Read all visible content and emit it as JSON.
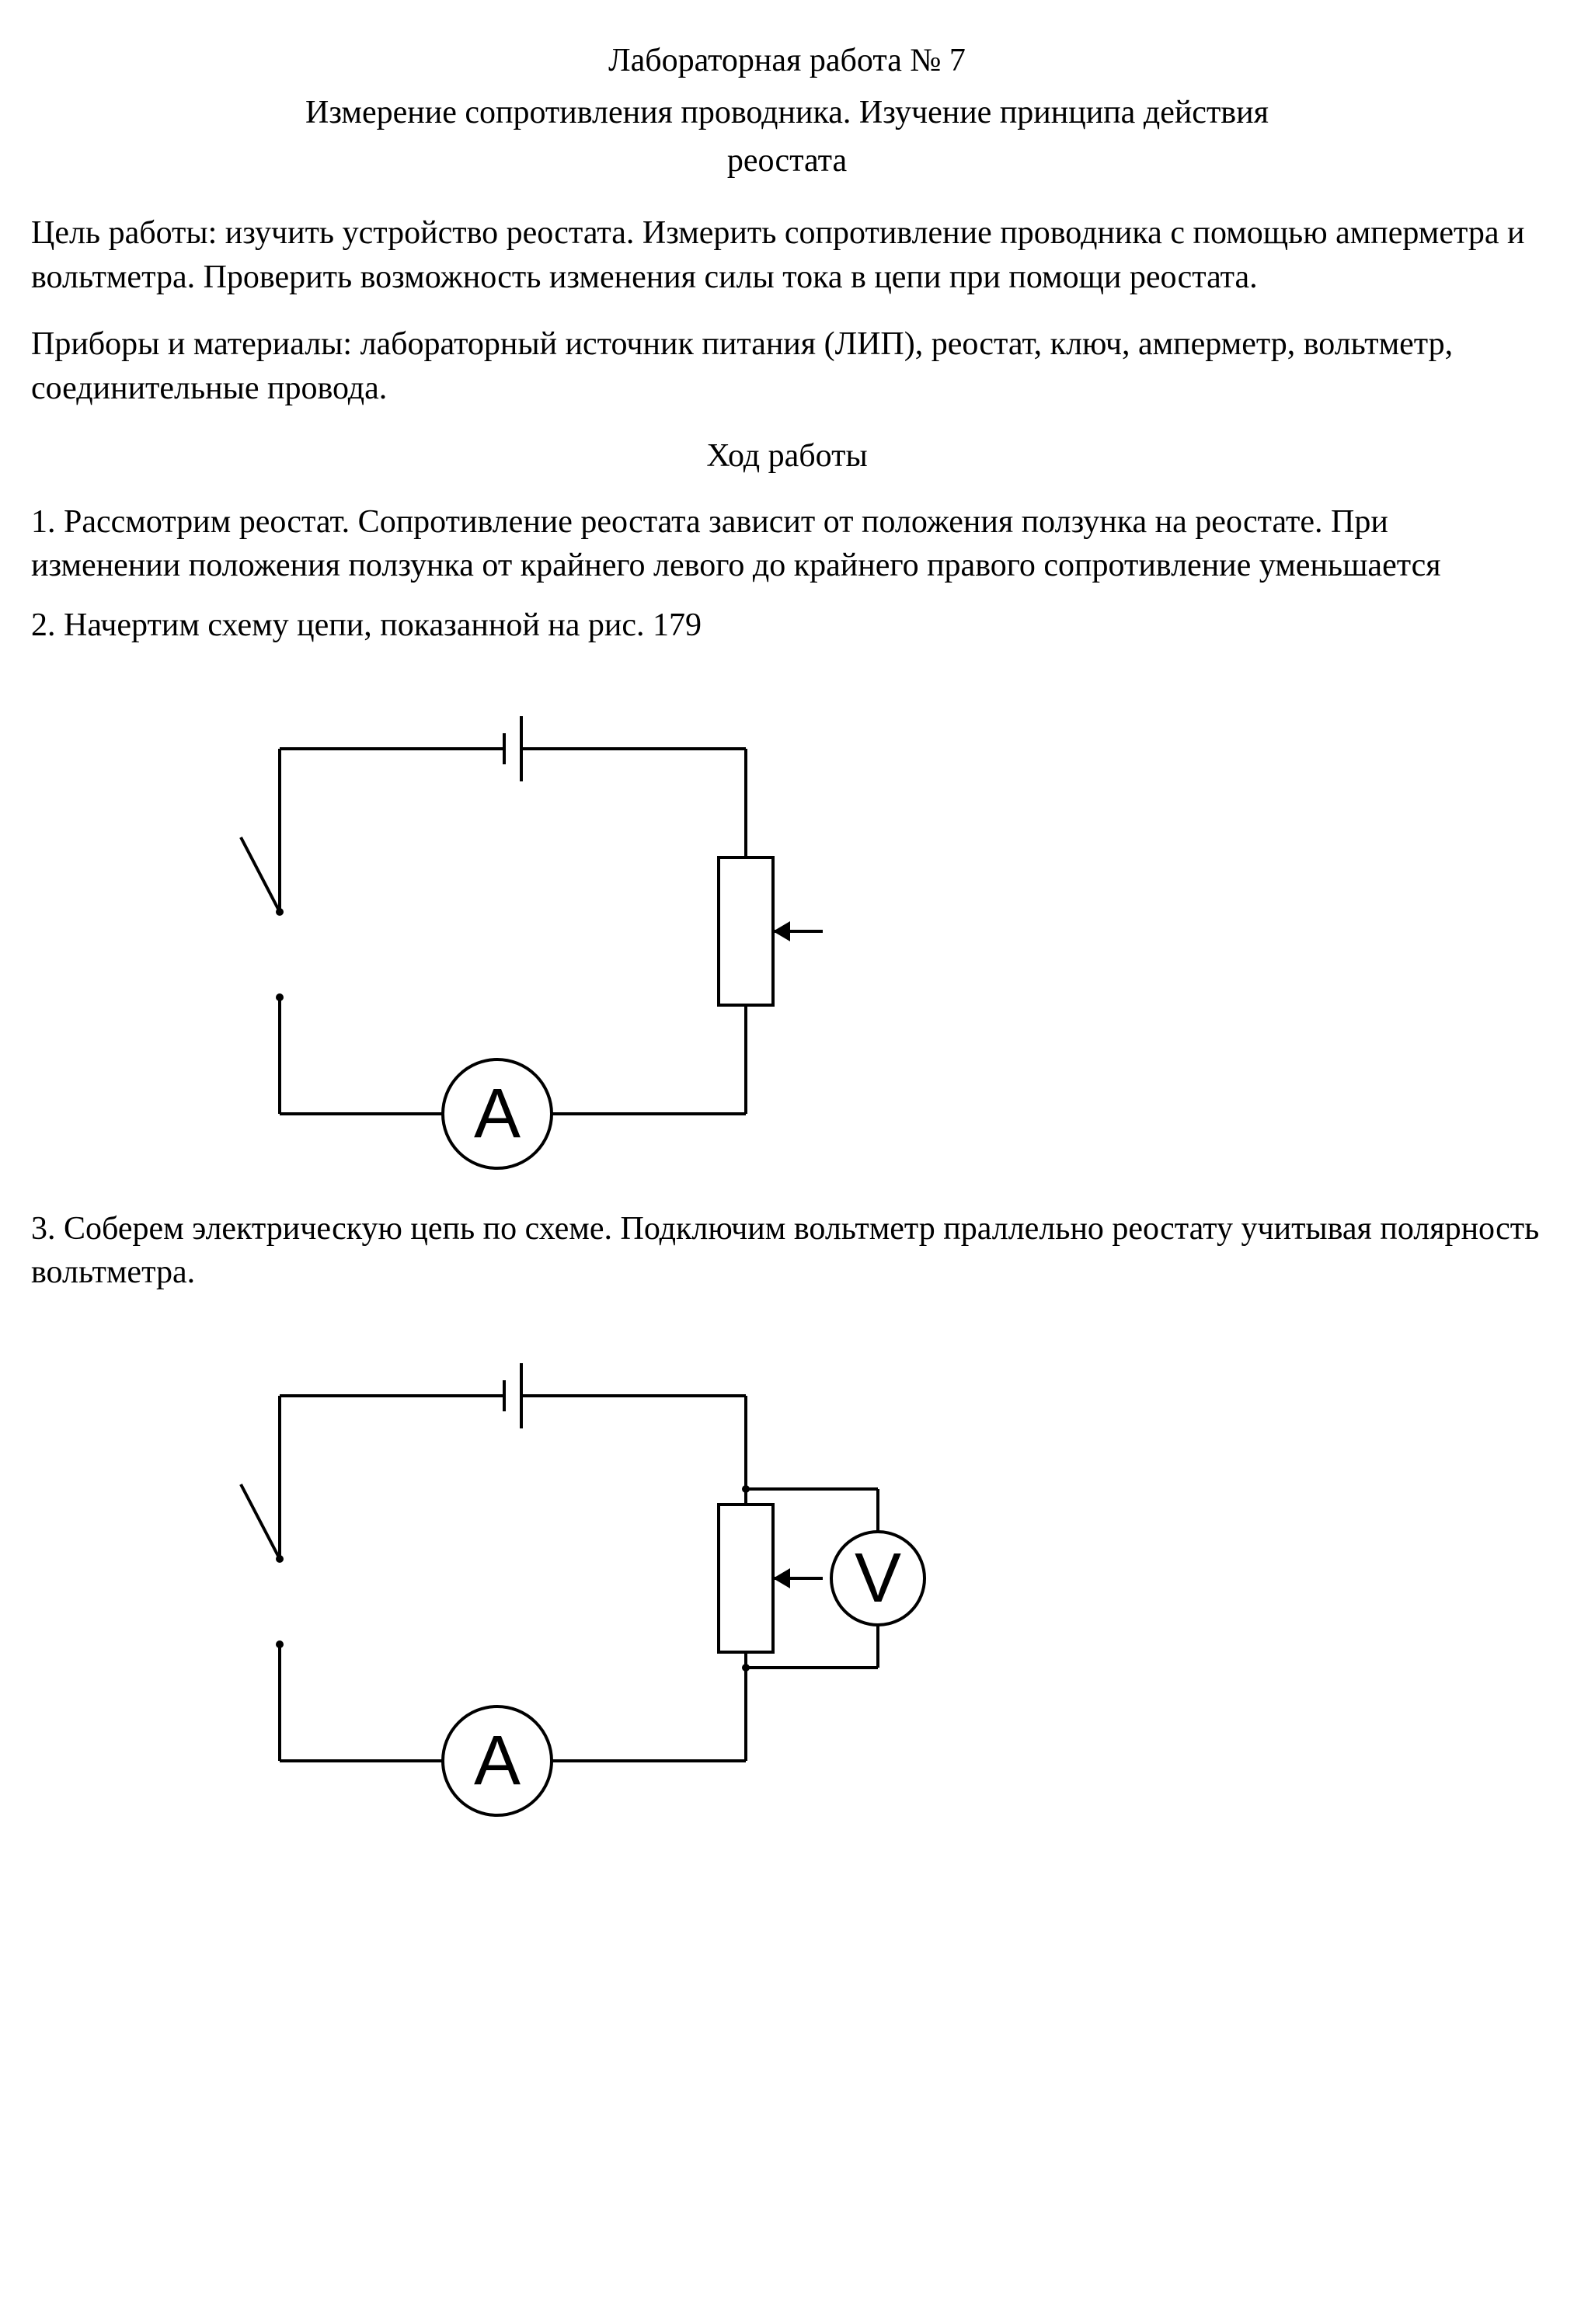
{
  "header": {
    "lab_number": "Лабораторная работа № 7",
    "lab_title_line1": "Измерение сопротивления проводника. Изучение принципа действия",
    "lab_title_line2": "реостата"
  },
  "goal": {
    "label": "Цель работы: ",
    "text": "изучить устройство реостата. Измерить сопротивление проводника с помощью амперметра и вольтметра. Проверить возможность изменения силы тока в цепи при помощи реостата."
  },
  "materials": {
    "label": "Приборы и материалы: ",
    "text": "лабораторный источник питания (ЛИП), реостат, ключ, амперметр, вольтметр, соединительные провода."
  },
  "procedure_heading": "Ход работы",
  "steps": {
    "s1": "1. Рассмотрим реостат. Сопротивление реостата зависит от положения ползунка на реостате. При изменении положения ползунка от крайнего левого до крайнего правого сопротивление уменьшается",
    "s2": "2. Начертим схему цепи, показанной на рис. 179",
    "s3": "3. Соберем электрическую цепь по схеме. Подключим вольтметр праллельно реостату учитывая полярность вольтметра."
  },
  "diagram": {
    "colors": {
      "stroke": "#000000",
      "background": "#ffffff"
    },
    "stroke_width": 4,
    "meters": {
      "A": {
        "label": "A",
        "radius": 70
      },
      "V": {
        "label": "V",
        "radius": 60
      }
    },
    "battery": {
      "gap": 22,
      "short_half": 20,
      "long_half": 42
    },
    "rheostat": {
      "width": 70,
      "height": 190,
      "arrow_len": 64
    },
    "switch": {
      "gap": 110,
      "lever_dx": -50,
      "lever_dy": -96
    }
  }
}
